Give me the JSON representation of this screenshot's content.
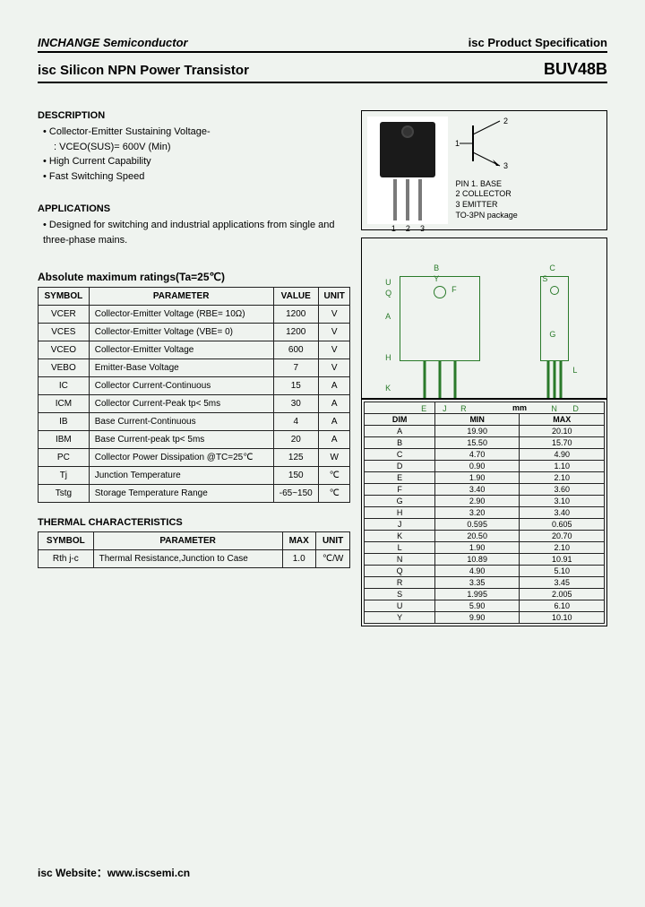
{
  "header": {
    "company": "INCHANGE Semiconductor",
    "spec": "isc Product Specification",
    "title": "isc Silicon NPN Power Transistor",
    "part": "BUV48B"
  },
  "description": {
    "heading": "DESCRIPTION",
    "items": [
      "Collector-Emitter Sustaining Voltage-",
      "High Current Capability",
      "Fast Switching Speed"
    ],
    "sub": ": VCEO(SUS)= 600V (Min)"
  },
  "applications": {
    "heading": "APPLICATIONS",
    "text": "Designed for switching and industrial applications from single and three-phase mains."
  },
  "ratings": {
    "heading": "Absolute maximum ratings(Ta=25℃)",
    "columns": [
      "SYMBOL",
      "PARAMETER",
      "VALUE",
      "UNIT"
    ],
    "rows": [
      [
        "VCER",
        "Collector-Emitter Voltage (RBE= 10Ω)",
        "1200",
        "V"
      ],
      [
        "VCES",
        "Collector-Emitter Voltage (VBE= 0)",
        "1200",
        "V"
      ],
      [
        "VCEO",
        "Collector-Emitter Voltage",
        "600",
        "V"
      ],
      [
        "VEBO",
        "Emitter-Base Voltage",
        "7",
        "V"
      ],
      [
        "IC",
        "Collector Current-Continuous",
        "15",
        "A"
      ],
      [
        "ICM",
        "Collector Current-Peak tp< 5ms",
        "30",
        "A"
      ],
      [
        "IB",
        "Base Current-Continuous",
        "4",
        "A"
      ],
      [
        "IBM",
        "Base Current-peak tp< 5ms",
        "20",
        "A"
      ],
      [
        "PC",
        "Collector Power Dissipation @TC=25℃",
        "125",
        "W"
      ],
      [
        "Tj",
        "Junction Temperature",
        "150",
        "℃"
      ],
      [
        "Tstg",
        "Storage Temperature Range",
        "-65~150",
        "℃"
      ]
    ]
  },
  "thermal": {
    "heading": "THERMAL CHARACTERISTICS",
    "columns": [
      "SYMBOL",
      "PARAMETER",
      "MAX",
      "UNIT"
    ],
    "rows": [
      [
        "Rth j-c",
        "Thermal Resistance,Junction to Case",
        "1.0",
        "℃/W"
      ]
    ]
  },
  "pins": {
    "labels": [
      "1",
      "2",
      "3"
    ],
    "legend": [
      "PIN  1. BASE",
      "2  COLLECTOR",
      "3  EMITTER",
      "TO-3PN package"
    ]
  },
  "dimensions": {
    "header_unit": "mm",
    "columns": [
      "DIM",
      "MIN",
      "MAX"
    ],
    "rows": [
      [
        "A",
        "19.90",
        "20.10"
      ],
      [
        "B",
        "15.50",
        "15.70"
      ],
      [
        "C",
        "4.70",
        "4.90"
      ],
      [
        "D",
        "0.90",
        "1.10"
      ],
      [
        "E",
        "1.90",
        "2.10"
      ],
      [
        "F",
        "3.40",
        "3.60"
      ],
      [
        "G",
        "2.90",
        "3.10"
      ],
      [
        "H",
        "3.20",
        "3.40"
      ],
      [
        "J",
        "0.595",
        "0.605"
      ],
      [
        "K",
        "20.50",
        "20.70"
      ],
      [
        "L",
        "1.90",
        "2.10"
      ],
      [
        "N",
        "10.89",
        "10.91"
      ],
      [
        "Q",
        "4.90",
        "5.10"
      ],
      [
        "R",
        "3.35",
        "3.45"
      ],
      [
        "S",
        "1.995",
        "2.005"
      ],
      [
        "U",
        "5.90",
        "6.10"
      ],
      [
        "Y",
        "9.90",
        "10.10"
      ]
    ]
  },
  "footer": "isc Website：www.iscsemi.cn"
}
